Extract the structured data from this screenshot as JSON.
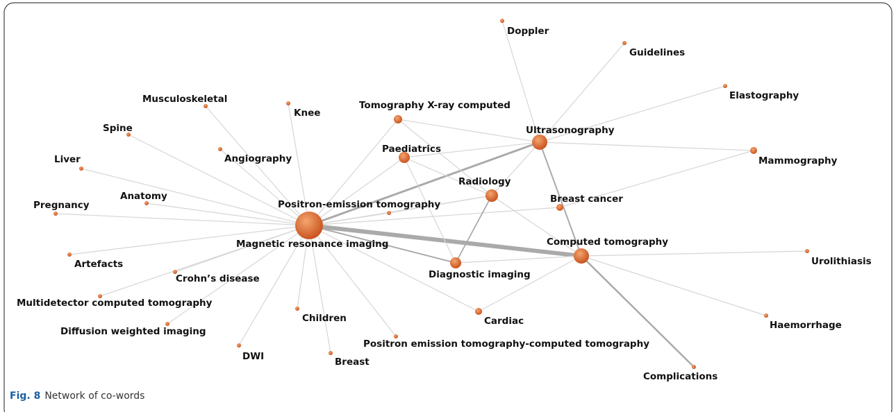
{
  "nodes": [
    {
      "label": "Doppler"
    },
    {
      "label": "Guidelines"
    },
    {
      "label": "Elastography"
    },
    {
      "label": "Musculoskeletal"
    },
    {
      "label": "Knee"
    },
    {
      "label": "Tomography X-ray computed"
    },
    {
      "label": "Ultrasonography"
    },
    {
      "label": "Spine"
    },
    {
      "label": "Angiography"
    },
    {
      "label": "Paediatrics"
    },
    {
      "label": "Mammography"
    },
    {
      "label": "Liver"
    },
    {
      "label": "Radiology"
    },
    {
      "label": "Anatomy"
    },
    {
      "label": "Pregnancy"
    },
    {
      "label": "Positron-emission tomography"
    },
    {
      "label": "Breast cancer"
    },
    {
      "label": "Magnetic resonance imaging"
    },
    {
      "label": "Computed tomography"
    },
    {
      "label": "Artefacts"
    },
    {
      "label": "Urolithiasis"
    },
    {
      "label": "Diagnostic imaging"
    },
    {
      "label": "Crohn’s disease"
    },
    {
      "label": "Multidetector computed tomography"
    },
    {
      "label": "Children"
    },
    {
      "label": "Cardiac"
    },
    {
      "label": "Haemorrhage"
    },
    {
      "label": "Diffusion weighted imaging"
    },
    {
      "label": "Positron emission tomography-computed tomography"
    },
    {
      "label": "DWI"
    },
    {
      "label": "Breast"
    },
    {
      "label": "Complications"
    }
  ],
  "caption": {
    "label": "Fig. 8",
    "text": "Network of co-words"
  }
}
